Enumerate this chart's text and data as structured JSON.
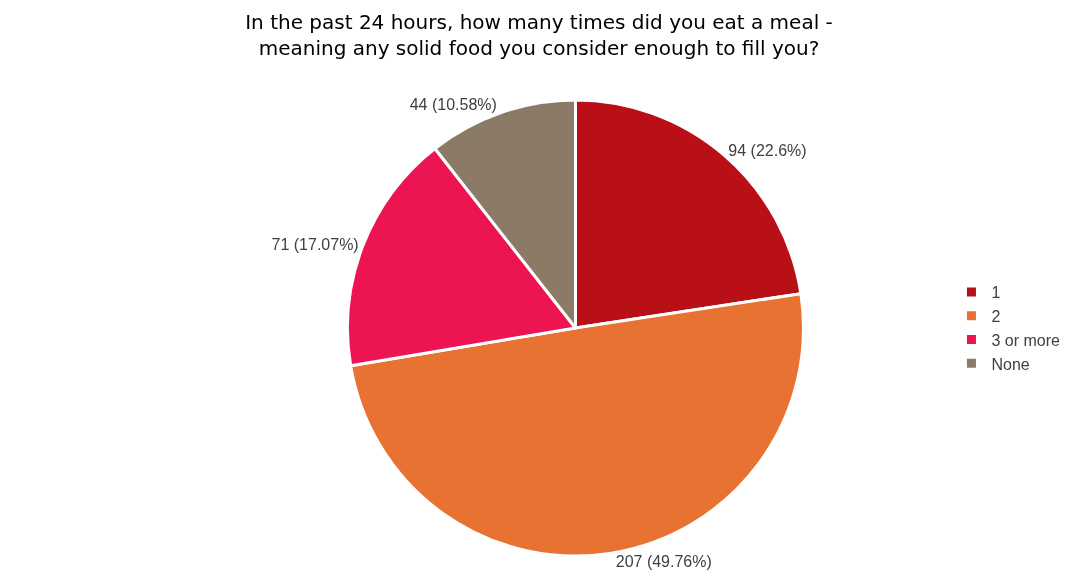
{
  "chart_data": {
    "type": "pie",
    "title": "In the past 24 hours, how many times did you eat a meal -\nmeaning any solid food you consider enough to fill you?",
    "categories": [
      "1",
      "2",
      "3 or more",
      "None"
    ],
    "values": [
      94,
      207,
      71,
      44
    ],
    "colors": [
      "#b90f17",
      "#e87232",
      "#ec1552",
      "#8b7b66"
    ],
    "value_labels": [
      "94 (22.6%)",
      "207 (49.76%)",
      "71 (17.07%)",
      "44 (10.58%)"
    ],
    "legend": "right"
  }
}
